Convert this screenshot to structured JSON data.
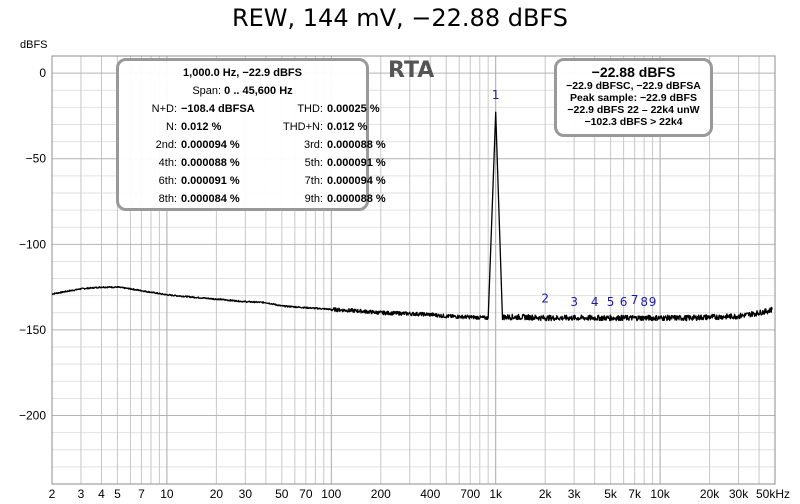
{
  "chart_data": {
    "type": "line",
    "title": "REW, 144 mV, −22.88 dBFS",
    "ylabel": "dBFS",
    "xscale": "log",
    "xlim": [
      2,
      50000
    ],
    "ylim": [
      -240,
      10
    ],
    "grid": true,
    "y_ticks": [
      0,
      -50,
      -100,
      -150,
      -200
    ],
    "y_tick_labels": [
      "0",
      "−50",
      "−100",
      "−150",
      "−200"
    ],
    "x_ticks": [
      2,
      3,
      4,
      5,
      7,
      10,
      20,
      30,
      50,
      70,
      100,
      200,
      400,
      700,
      1000,
      2000,
      3000,
      5000,
      7000,
      10000,
      20000,
      30000,
      50000
    ],
    "x_tick_labels": [
      "2",
      "3",
      "4",
      "5",
      "7",
      "10",
      "20",
      "30",
      "50",
      "70",
      "100",
      "200",
      "400",
      "700",
      "1k",
      "2k",
      "3k",
      "5k",
      "7k",
      "10k",
      "20k",
      "30k",
      "50kHz"
    ],
    "series": [
      {
        "x": [
          2,
          3,
          4,
          5,
          6,
          8,
          10,
          15,
          20,
          30,
          40,
          50,
          70,
          100,
          150,
          200,
          300,
          400,
          500,
          700,
          900,
          1000,
          1100,
          1500,
          2000,
          3000,
          5000,
          7000,
          10000,
          15000,
          20000,
          30000,
          40000,
          45000,
          48000
        ],
        "y": [
          -129,
          -126,
          -125,
          -125,
          -126,
          -128,
          -129.5,
          -131,
          -132,
          -133.5,
          -134,
          -136,
          -137,
          -138,
          -139,
          -140,
          -140.5,
          -141,
          -142,
          -142.5,
          -143,
          -22.9,
          -142.5,
          -142.5,
          -143,
          -143,
          -143,
          -143,
          -143,
          -143,
          -142.5,
          -142,
          -140,
          -139,
          -138
        ]
      }
    ],
    "annotations": [
      {
        "label": "1",
        "x": 1000,
        "y": -15
      },
      {
        "label": "2",
        "x": 2000,
        "y": -134
      },
      {
        "label": "3",
        "x": 3000,
        "y": -136
      },
      {
        "label": "4",
        "x": 4000,
        "y": -136
      },
      {
        "label": "5",
        "x": 5000,
        "y": -136
      },
      {
        "label": "6",
        "x": 6000,
        "y": -136
      },
      {
        "label": "7",
        "x": 7000,
        "y": -135
      },
      {
        "label": "8",
        "x": 8000,
        "y": -136
      },
      {
        "label": "9",
        "x": 9000,
        "y": -136
      }
    ]
  },
  "panel_label": "RTA",
  "info": {
    "header": "1,000.0 Hz, −22.9 dBFS",
    "span_label": "Span:",
    "span_value": "0 .. 45,600 Hz",
    "rows": [
      {
        "l1": "N+D:",
        "v1": "−108.4 dBFSA",
        "l2": "THD:",
        "v2": "0.00025 %"
      },
      {
        "l1": "N:",
        "v1": "0.012 %",
        "l2": "THD+N:",
        "v2": "0.012 %"
      },
      {
        "l1": "2nd:",
        "v1": "0.000094 %",
        "l2": "3rd:",
        "v2": "0.000088 %"
      },
      {
        "l1": "4th:",
        "v1": "0.000088 %",
        "l2": "5th:",
        "v2": "0.000091 %"
      },
      {
        "l1": "6th:",
        "v1": "0.000091 %",
        "l2": "7th:",
        "v2": "0.000094 %"
      },
      {
        "l1": "8th:",
        "v1": "0.000084 %",
        "l2": "9th:",
        "v2": "0.000088 %"
      }
    ]
  },
  "level": {
    "main": "−22.88 dBFS",
    "line1": "−22.9 dBFSC, −22.9 dBFSA",
    "line2": "Peak sample: −22.9 dBFS",
    "line3": "−22.9 dBFS 22 – 22k4 unW",
    "line4": "−102.3 dBFS > 22k4"
  },
  "colors": {
    "trace": "#000000",
    "marker": "#1a1aa8",
    "grid": "#c8c8c8",
    "box_border": "#999999"
  }
}
